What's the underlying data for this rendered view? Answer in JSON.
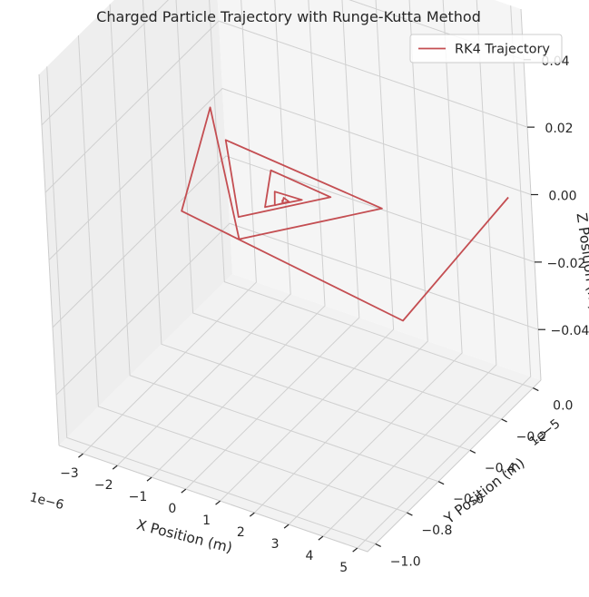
{
  "chart_data": {
    "type": "line",
    "projection": "3d",
    "title": "Charged Particle Trajectory with Runge-Kutta Method",
    "xlabel": "X Position (m)",
    "ylabel": "Y Position (m)",
    "zlabel": "Z Position (m)",
    "x_offset_text": "1e−6",
    "y_offset_text": "1e−5",
    "x_ticks": [
      "−3",
      "−2",
      "−1",
      "0",
      "1",
      "2",
      "3",
      "4",
      "5"
    ],
    "y_ticks": [
      "−1.0",
      "−0.8",
      "−0.6",
      "−0.4",
      "−0.2",
      "0.0"
    ],
    "z_ticks": [
      "−0.04",
      "−0.02",
      "0.00",
      "0.02",
      "0.04"
    ],
    "x_unit": 1e-06,
    "y_unit": 1e-05,
    "xlim": [
      -3.7,
      5.3
    ],
    "ylim": [
      -1.05,
      0.05
    ],
    "zlim": [
      -0.055,
      0.055
    ],
    "legend_position": "top-right",
    "grid": true,
    "series": [
      {
        "name": "RK4 Trajectory",
        "color": "#c44e52",
        "z": 0,
        "x": [
          4.87,
          5.29,
          -1.9,
          -3.55,
          -0.04,
          2.38,
          -2.5,
          -0.54,
          1.02,
          -0.86,
          -0.18,
          0.46,
          -0.31,
          -0.01,
          0.22,
          0.02,
          0.1,
          0.05,
          0.07
        ],
        "y": [
          0.0,
          -0.76,
          -0.6,
          -0.06,
          -0.64,
          -0.26,
          -0.19,
          -0.535,
          -0.29,
          -0.26,
          -0.445,
          -0.35,
          -0.355,
          -0.42,
          -0.38,
          -0.37,
          -0.395,
          -0.385,
          -0.39
        ]
      }
    ]
  }
}
